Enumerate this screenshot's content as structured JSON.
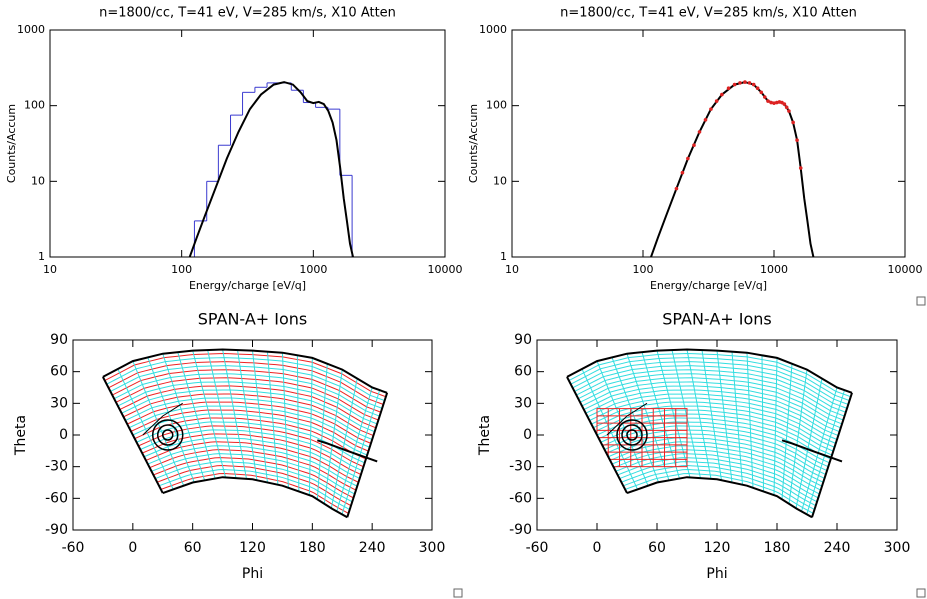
{
  "chart_data": [
    {
      "type": "line",
      "title": "n=1800/cc, T=41 eV, V=285 km/s, X10 Atten",
      "xlabel": "Energy/charge [eV/q]",
      "ylabel": "Counts/Accum",
      "xlog": true,
      "ylog": true,
      "xlim": [
        10,
        10000
      ],
      "ylim": [
        1,
        1000
      ],
      "xticks": [
        10,
        100,
        1000,
        10000
      ],
      "yticks": [
        1,
        10,
        100,
        1000
      ],
      "histogram": {
        "color": "#3a3ad0",
        "bins": [
          10,
          125,
          155,
          190,
          235,
          290,
          360,
          445,
          550,
          680,
          840,
          1040,
          1290,
          1590,
          1970
        ],
        "counts": [
          1,
          3,
          10,
          30,
          75,
          150,
          175,
          200,
          200,
          160,
          110,
          95,
          90,
          12
        ]
      },
      "series": [
        {
          "color": "#000000",
          "x": [
            115,
            130,
            150,
            180,
            220,
            270,
            330,
            400,
            500,
            600,
            700,
            800,
            900,
            1000,
            1100,
            1200,
            1300,
            1400,
            1500,
            1600,
            1700,
            1800,
            1900,
            2000
          ],
          "values": [
            1,
            1.8,
            3.5,
            8,
            20,
            45,
            90,
            140,
            190,
            205,
            190,
            150,
            115,
            108,
            112,
            105,
            85,
            60,
            35,
            15,
            6,
            3,
            1.5,
            1
          ]
        }
      ]
    },
    {
      "type": "line",
      "title": "n=1800/cc, T=41 eV, V=285 km/s, X10 Atten",
      "xlabel": "Energy/charge [eV/q]",
      "ylabel": "Counts/Accum",
      "xlog": true,
      "ylog": true,
      "xlim": [
        10,
        10000
      ],
      "ylim": [
        1,
        1000
      ],
      "xticks": [
        10,
        100,
        1000,
        10000
      ],
      "yticks": [
        1,
        10,
        100,
        1000
      ],
      "series": [
        {
          "color": "#000000",
          "x": [
            115,
            130,
            150,
            180,
            220,
            270,
            330,
            400,
            500,
            600,
            700,
            800,
            900,
            1000,
            1100,
            1200,
            1300,
            1400,
            1500,
            1600,
            1700,
            1800,
            1900,
            2000
          ],
          "values": [
            1,
            1.8,
            3.5,
            8,
            20,
            45,
            90,
            140,
            190,
            205,
            190,
            150,
            115,
            108,
            112,
            105,
            85,
            60,
            35,
            15,
            6,
            3,
            1.5,
            1
          ]
        },
        {
          "color": "#dd2222",
          "style": "points",
          "x": [
            180,
            200,
            220,
            245,
            270,
            300,
            330,
            365,
            400,
            450,
            500,
            550,
            600,
            650,
            700,
            750,
            800,
            850,
            900,
            950,
            1000,
            1050,
            1100,
            1150,
            1200,
            1250,
            1300,
            1400,
            1500,
            1600
          ],
          "values": [
            8,
            13,
            20,
            30,
            45,
            65,
            90,
            115,
            140,
            170,
            190,
            200,
            205,
            200,
            190,
            170,
            150,
            130,
            115,
            110,
            108,
            110,
            112,
            110,
            105,
            95,
            85,
            60,
            35,
            15
          ]
        }
      ]
    },
    {
      "type": "map",
      "title": "SPAN-A+ Ions",
      "xlabel": "Phi",
      "ylabel": "Theta",
      "xlim": [
        -60,
        300
      ],
      "ylim": [
        -90,
        90
      ],
      "xticks": [
        -60,
        0,
        60,
        120,
        180,
        240,
        300
      ],
      "yticks": [
        -90,
        -60,
        -30,
        0,
        30,
        60,
        90
      ],
      "mesh_color": "#33dde0",
      "highlight_color": "#ee2222",
      "outline_color": "#000000",
      "highlight_rows": true,
      "top": {
        "x": [
          -30,
          0,
          30,
          60,
          90,
          120,
          150,
          180,
          210,
          240,
          255
        ],
        "y": [
          55,
          70,
          77,
          80,
          81,
          80,
          78,
          73,
          62,
          45,
          40
        ]
      },
      "bottom": {
        "x": [
          30,
          60,
          90,
          120,
          150,
          180,
          200,
          215
        ],
        "y": [
          -55,
          -45,
          -40,
          -42,
          -48,
          -58,
          -70,
          -78
        ]
      },
      "circle": {
        "x": 35,
        "y": 0
      },
      "arm": {
        "x": [
          10,
          30,
          50
        ],
        "y": [
          0,
          18,
          30
        ]
      },
      "track": {
        "x": [
          185,
          195,
          215,
          245
        ],
        "y": [
          -5,
          -8,
          -15,
          -25
        ]
      }
    },
    {
      "type": "map",
      "title": "SPAN-A+ Ions",
      "xlabel": "Phi",
      "ylabel": "Theta",
      "xlim": [
        -60,
        300
      ],
      "ylim": [
        -90,
        90
      ],
      "xticks": [
        -60,
        0,
        60,
        120,
        180,
        240,
        300
      ],
      "yticks": [
        -90,
        -60,
        -30,
        0,
        30,
        60,
        90
      ],
      "mesh_color": "#33dde0",
      "highlight_color": "#ee2222",
      "outline_color": "#000000",
      "highlight_box": {
        "x": [
          0,
          90
        ],
        "y": [
          -30,
          25
        ]
      },
      "top": {
        "x": [
          -30,
          0,
          30,
          60,
          90,
          120,
          150,
          180,
          210,
          240,
          255
        ],
        "y": [
          55,
          70,
          77,
          80,
          81,
          80,
          78,
          73,
          62,
          45,
          40
        ]
      },
      "bottom": {
        "x": [
          30,
          60,
          90,
          120,
          150,
          180,
          200,
          215
        ],
        "y": [
          -55,
          -45,
          -40,
          -42,
          -48,
          -58,
          -70,
          -78
        ]
      },
      "circle": {
        "x": 35,
        "y": 0
      },
      "arm": {
        "x": [
          10,
          30,
          50
        ],
        "y": [
          0,
          18,
          30
        ]
      },
      "track": {
        "x": [
          185,
          195,
          215,
          245
        ],
        "y": [
          -5,
          -8,
          -15,
          -25
        ]
      }
    }
  ]
}
